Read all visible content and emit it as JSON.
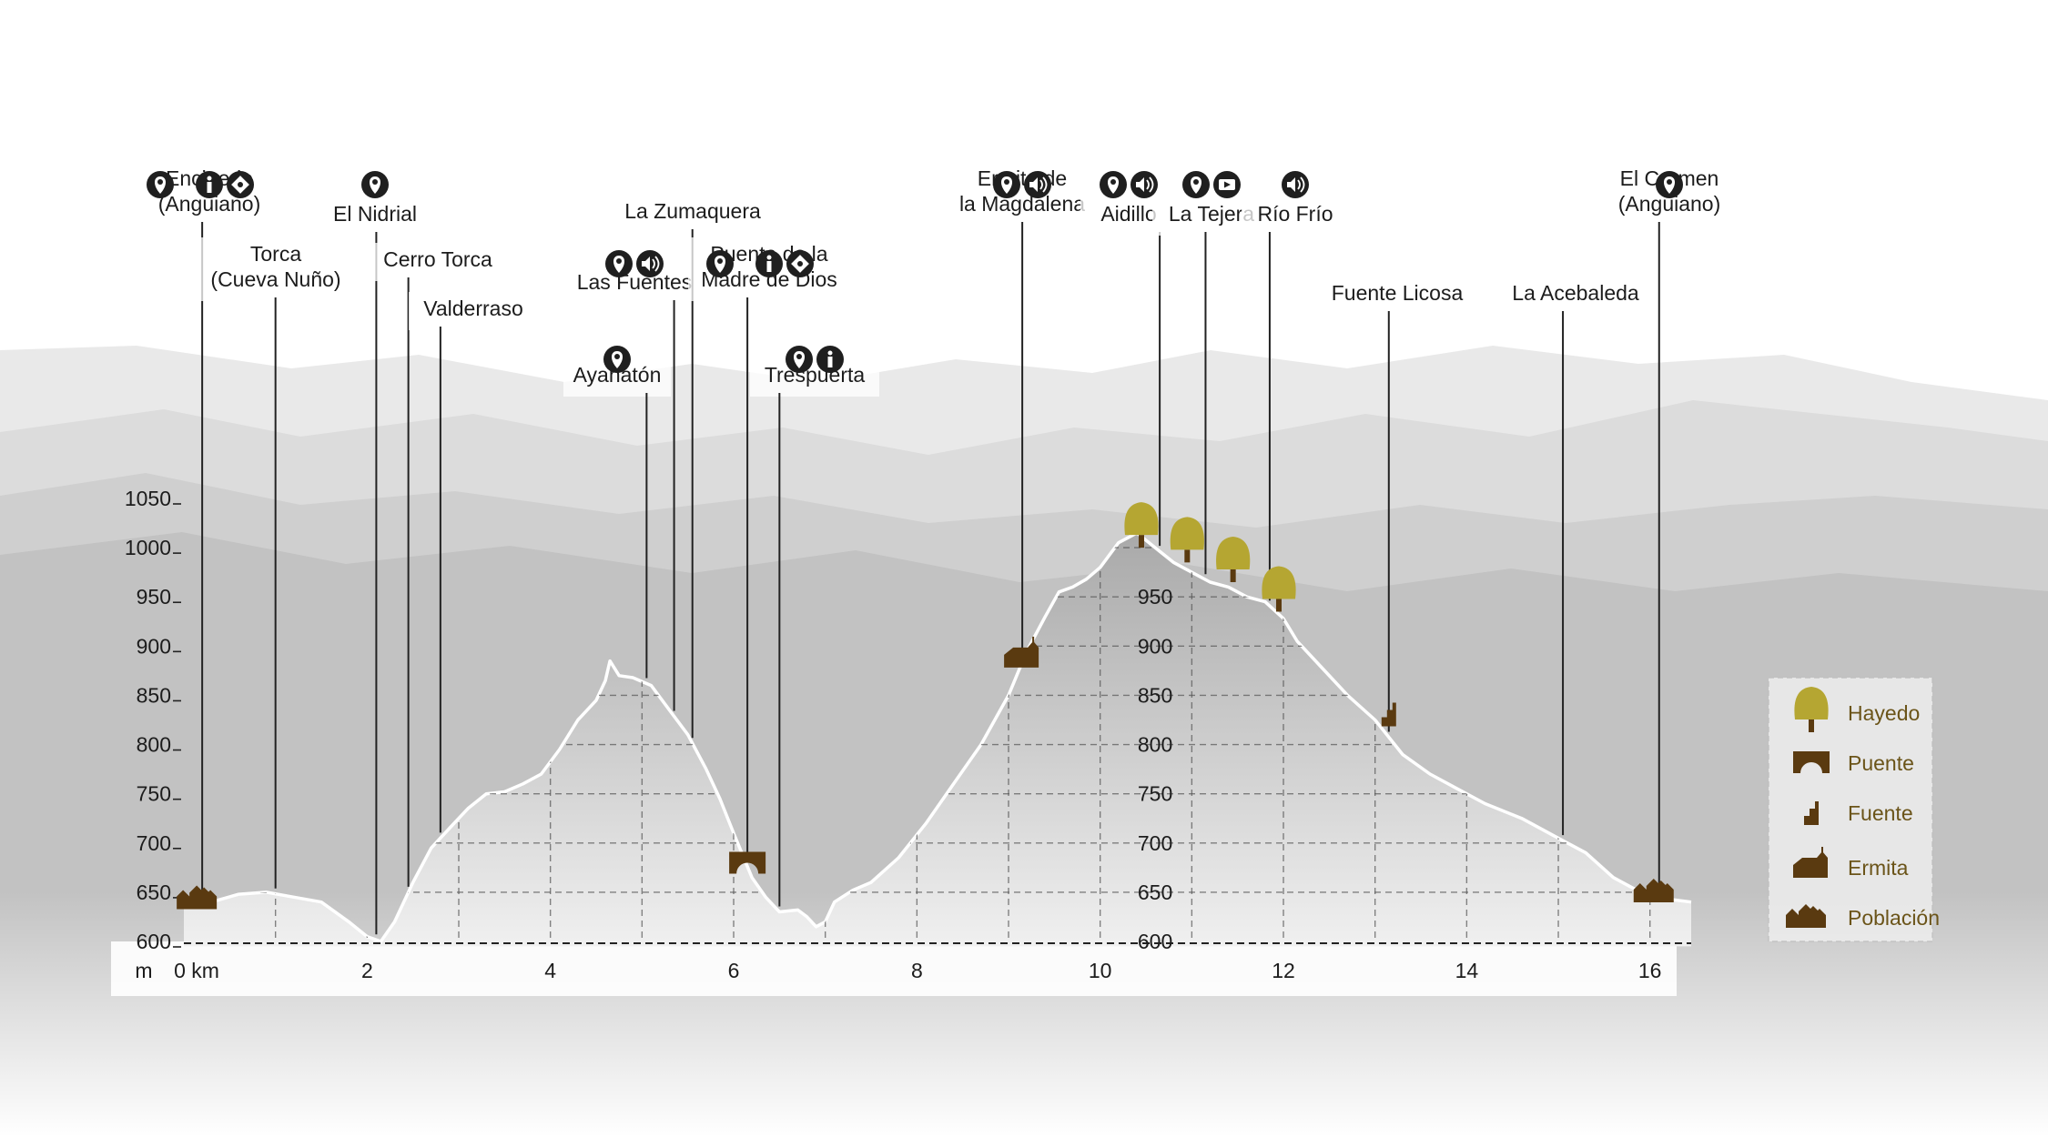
{
  "chart_data": {
    "type": "area",
    "y_unit_label": "m",
    "x_unit_suffix": "km",
    "xlim": [
      0,
      16.45
    ],
    "ylim": [
      600,
      1050
    ],
    "x_ticks": [
      {
        "v": 0,
        "label": "0 km"
      },
      {
        "v": 2,
        "label": "2"
      },
      {
        "v": 4,
        "label": "4"
      },
      {
        "v": 6,
        "label": "6"
      },
      {
        "v": 8,
        "label": "8"
      },
      {
        "v": 10,
        "label": "10"
      },
      {
        "v": 12,
        "label": "12"
      },
      {
        "v": 14,
        "label": "14"
      },
      {
        "v": 16,
        "label": "16"
      }
    ],
    "y_ticks": [
      600,
      650,
      700,
      750,
      800,
      850,
      900,
      950,
      1000,
      1050
    ],
    "inner_y_labels": [
      600,
      650,
      700,
      750,
      800,
      850,
      900,
      950
    ],
    "profile": [
      [
        0.0,
        635
      ],
      [
        0.3,
        640
      ],
      [
        0.6,
        648
      ],
      [
        0.9,
        650
      ],
      [
        1.2,
        645
      ],
      [
        1.5,
        640
      ],
      [
        1.8,
        620
      ],
      [
        2.0,
        605
      ],
      [
        2.15,
        600
      ],
      [
        2.3,
        620
      ],
      [
        2.5,
        660
      ],
      [
        2.7,
        695
      ],
      [
        2.9,
        715
      ],
      [
        3.1,
        735
      ],
      [
        3.3,
        750
      ],
      [
        3.5,
        752
      ],
      [
        3.7,
        760
      ],
      [
        3.9,
        770
      ],
      [
        4.1,
        795
      ],
      [
        4.3,
        825
      ],
      [
        4.5,
        845
      ],
      [
        4.6,
        865
      ],
      [
        4.65,
        885
      ],
      [
        4.75,
        870
      ],
      [
        4.9,
        868
      ],
      [
        5.1,
        860
      ],
      [
        5.3,
        835
      ],
      [
        5.5,
        810
      ],
      [
        5.7,
        775
      ],
      [
        5.85,
        745
      ],
      [
        6.0,
        710
      ],
      [
        6.2,
        665
      ],
      [
        6.35,
        645
      ],
      [
        6.5,
        630
      ],
      [
        6.7,
        632
      ],
      [
        6.8,
        625
      ],
      [
        6.9,
        615
      ],
      [
        7.0,
        620
      ],
      [
        7.1,
        640
      ],
      [
        7.3,
        652
      ],
      [
        7.5,
        660
      ],
      [
        7.8,
        685
      ],
      [
        8.1,
        720
      ],
      [
        8.4,
        760
      ],
      [
        8.7,
        800
      ],
      [
        9.0,
        850
      ],
      [
        9.2,
        895
      ],
      [
        9.4,
        930
      ],
      [
        9.55,
        955
      ],
      [
        9.7,
        960
      ],
      [
        9.85,
        968
      ],
      [
        10.0,
        980
      ],
      [
        10.2,
        1005
      ],
      [
        10.4,
        1015
      ],
      [
        10.6,
        1000
      ],
      [
        10.8,
        985
      ],
      [
        11.0,
        975
      ],
      [
        11.2,
        965
      ],
      [
        11.4,
        960
      ],
      [
        11.6,
        950
      ],
      [
        11.8,
        945
      ],
      [
        12.0,
        928
      ],
      [
        12.15,
        905
      ],
      [
        12.4,
        880
      ],
      [
        12.7,
        850
      ],
      [
        13.0,
        825
      ],
      [
        13.3,
        790
      ],
      [
        13.6,
        770
      ],
      [
        13.9,
        755
      ],
      [
        14.2,
        740
      ],
      [
        14.6,
        725
      ],
      [
        15.0,
        705
      ],
      [
        15.3,
        690
      ],
      [
        15.6,
        665
      ],
      [
        15.9,
        650
      ],
      [
        16.2,
        643
      ],
      [
        16.45,
        640
      ]
    ],
    "waypoints": [
      {
        "name": "Encinedo (Anguiano)",
        "lines": [
          "Encinedo",
          "(Anguiano)"
        ],
        "x": 0.2,
        "icons": [
          "pin-icon",
          "info-icon",
          "puzzle-icon"
        ],
        "symbol": "poblacion"
      },
      {
        "name": "Torca (Cueva Nuño)",
        "lines": [
          "Torca",
          "(Cueva Nuño)"
        ],
        "x": 1.0,
        "icons": []
      },
      {
        "name": "El Nidrial",
        "lines": [
          "El Nidrial"
        ],
        "x": 2.1,
        "icons": [
          "pin-icon"
        ]
      },
      {
        "name": "Cerro Torca",
        "lines": [
          "Cerro Torca"
        ],
        "x": 2.45,
        "icons": []
      },
      {
        "name": "Valderraso",
        "lines": [
          "Valderraso"
        ],
        "x": 2.8,
        "icons": []
      },
      {
        "name": "Ayanatón",
        "lines": [
          "Ayanatón"
        ],
        "x": 5.05,
        "icons": [
          "pin-icon"
        ]
      },
      {
        "name": "Las Fuentes",
        "lines": [
          "Las Fuentes"
        ],
        "x": 5.35,
        "icons": [
          "pin-icon",
          "audio-icon"
        ]
      },
      {
        "name": "La Zumaquera",
        "lines": [
          "La Zumaquera"
        ],
        "x": 5.55,
        "icons": []
      },
      {
        "name": "Puente de la Madre de Dios",
        "lines": [
          "Puente de la",
          "Madre de Dios"
        ],
        "x": 6.15,
        "icons": [
          "pin-icon",
          "info-icon",
          "puzzle-icon"
        ],
        "symbol": "puente"
      },
      {
        "name": "Trespuerta",
        "lines": [
          "Trespuerta"
        ],
        "x": 6.5,
        "icons": [
          "pin-icon",
          "info-icon"
        ]
      },
      {
        "name": "Ermita de la Magdalena",
        "lines": [
          "Ermita de",
          "la Magdalena"
        ],
        "x": 9.15,
        "icons": [
          "pin-icon",
          "audio-icon"
        ],
        "symbol": "ermita"
      },
      {
        "name": "Aidillo",
        "lines": [
          "Aidillo"
        ],
        "x": 10.65,
        "icons": [
          "pin-icon",
          "audio-icon"
        ]
      },
      {
        "name": "La Tejera",
        "lines": [
          "La Tejera"
        ],
        "x": 11.15,
        "icons": [
          "pin-icon",
          "video-icon"
        ]
      },
      {
        "name": "Río Frío",
        "lines": [
          "Río Frío"
        ],
        "x": 11.85,
        "icons": [
          "audio-icon"
        ]
      },
      {
        "name": "Fuente Licosa",
        "lines": [
          "Fuente Licosa"
        ],
        "x": 13.15,
        "icons": [],
        "symbol": "fuente"
      },
      {
        "name": "La Acebaleda",
        "lines": [
          "La Acebaleda"
        ],
        "x": 15.05,
        "icons": []
      },
      {
        "name": "El Carmen (Anguiano)",
        "lines": [
          "El Carmen",
          "(Anguiano)"
        ],
        "x": 16.1,
        "icons": [
          "pin-icon"
        ],
        "symbol": "poblacion"
      }
    ],
    "trees": [
      {
        "x": 10.45,
        "y": 1000
      },
      {
        "x": 10.95,
        "y": 985
      },
      {
        "x": 11.45,
        "y": 965
      },
      {
        "x": 11.95,
        "y": 935
      }
    ],
    "legend": {
      "placement": "right",
      "items": [
        {
          "key": "hayedo",
          "label": "Hayedo"
        },
        {
          "key": "puente",
          "label": "Puente"
        },
        {
          "key": "fuente",
          "label": "Fuente"
        },
        {
          "key": "ermita",
          "label": "Ermita"
        },
        {
          "key": "poblacion",
          "label": "Población"
        }
      ]
    },
    "colors": {
      "profile_fill": "#c8c8c8",
      "profile_fill_bottom": "#f4f4f4",
      "profile_stroke": "#ffffff",
      "symbol_brown": "#5a3a10",
      "tree_olive": "#b5a632",
      "legend_text": "#6b5419",
      "icon_dark": "#1f1f1f",
      "mountain_layers": [
        "#e9e9e9",
        "#dcdcdc",
        "#cfcfcf",
        "#c2c2c2"
      ]
    }
  }
}
